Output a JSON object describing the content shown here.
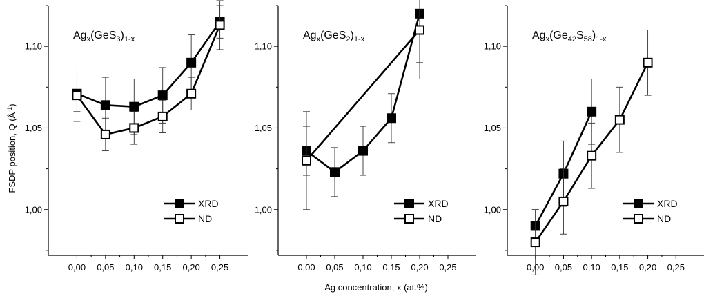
{
  "figure": {
    "ylabel": "FSDP position, Q (Å",
    "ylabel_sup": "-1",
    "ylabel_close": ")",
    "xlabel": "Ag concentration, x (at.%)"
  },
  "chart_data": [
    {
      "type": "line",
      "title": {
        "base": "Ag",
        "sub1": "x",
        "mid": "(GeS",
        "sub2": "3",
        "end": ")",
        "sub3": "1-x"
      },
      "xlim": [
        -0.05,
        0.3
      ],
      "ylim": [
        0.972,
        1.125
      ],
      "xticks": [
        0.0,
        0.05,
        0.1,
        0.15,
        0.2,
        0.25
      ],
      "xtick_labels": [
        "0,00",
        "0,05",
        "0,10",
        "0,15",
        "0,20",
        "0,25"
      ],
      "yticks": [
        1.0,
        1.05,
        1.1
      ],
      "ytick_labels": [
        "1,00",
        "1,05",
        "1,10"
      ],
      "legend_position": "bottom-right",
      "series": [
        {
          "name": "XRD",
          "marker": "filled-square",
          "x": [
            0.0,
            0.05,
            0.1,
            0.15,
            0.2,
            0.25
          ],
          "y": [
            1.071,
            1.064,
            1.063,
            1.07,
            1.09,
            1.115
          ],
          "err": [
            0.017,
            0.017,
            0.017,
            0.017,
            0.017,
            0.01
          ]
        },
        {
          "name": "ND",
          "marker": "open-square",
          "x": [
            0.0,
            0.05,
            0.1,
            0.15,
            0.2,
            0.25
          ],
          "y": [
            1.07,
            1.046,
            1.05,
            1.057,
            1.071,
            1.113
          ],
          "err": [
            0.01,
            0.01,
            0.01,
            0.01,
            0.01,
            0.015
          ]
        }
      ]
    },
    {
      "type": "line",
      "title": {
        "base": "Ag",
        "sub1": "x",
        "mid": "(GeS",
        "sub2": "2",
        "end": ")",
        "sub3": "1-x"
      },
      "xlim": [
        -0.05,
        0.3
      ],
      "ylim": [
        0.972,
        1.125
      ],
      "xticks": [
        0.0,
        0.05,
        0.1,
        0.15,
        0.2,
        0.25
      ],
      "xtick_labels": [
        "0,00",
        "0,05",
        "0,10",
        "0,15",
        "0,20",
        "0,25"
      ],
      "yticks": [
        1.0,
        1.05,
        1.1
      ],
      "ytick_labels": [
        "1,00",
        "1,05",
        "1,10"
      ],
      "legend_position": "bottom-right",
      "series": [
        {
          "name": "XRD",
          "marker": "filled-square",
          "x": [
            0.0,
            0.05,
            0.1,
            0.15,
            0.2
          ],
          "y": [
            1.036,
            1.023,
            1.036,
            1.056,
            1.12
          ],
          "err": [
            0.015,
            0.015,
            0.015,
            0.015,
            0.03
          ]
        },
        {
          "name": "ND",
          "marker": "open-square",
          "x": [
            0.0,
            0.2
          ],
          "y": [
            1.03,
            1.11
          ],
          "err": [
            0.03,
            0.03
          ]
        }
      ]
    },
    {
      "type": "line",
      "title": {
        "base": "Ag",
        "sub1": "x",
        "mid": "(Ge",
        "sub2": "42",
        "mid2": "S",
        "sub2b": "58",
        "end": ")",
        "sub3": "1-x"
      },
      "xlim": [
        -0.05,
        0.3
      ],
      "ylim": [
        0.972,
        1.125
      ],
      "xticks": [
        0.0,
        0.05,
        0.1,
        0.15,
        0.2,
        0.25
      ],
      "xtick_labels": [
        "0,00",
        "0,05",
        "0,10",
        "0,15",
        "0,20",
        "0,25"
      ],
      "yticks": [
        1.0,
        1.05,
        1.1
      ],
      "ytick_labels": [
        "1,00",
        "1,05",
        "1,10"
      ],
      "legend_position": "bottom-right",
      "series": [
        {
          "name": "XRD",
          "marker": "filled-square",
          "x": [
            0.0,
            0.05,
            0.1
          ],
          "y": [
            0.99,
            1.022,
            1.06
          ],
          "err": [
            0.01,
            0.02,
            0.02
          ]
        },
        {
          "name": "ND",
          "marker": "open-square",
          "x": [
            0.0,
            0.05,
            0.1,
            0.15,
            0.2
          ],
          "y": [
            0.98,
            1.005,
            1.033,
            1.055,
            1.09
          ],
          "err": [
            0.02,
            0.02,
            0.02,
            0.02,
            0.02
          ]
        }
      ]
    }
  ]
}
